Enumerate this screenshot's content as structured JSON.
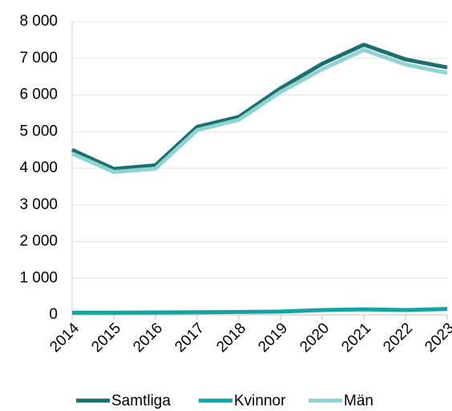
{
  "chart_data": {
    "type": "line",
    "categories": [
      "2014",
      "2015",
      "2016",
      "2017",
      "2018",
      "2019",
      "2020",
      "2021",
      "2022",
      "2023"
    ],
    "series": [
      {
        "name": "Samtliga",
        "color": "#1b6f6f",
        "values": [
          4500,
          3980,
          4080,
          5130,
          5400,
          6180,
          6850,
          7370,
          6970,
          6750
        ]
      },
      {
        "name": "Kvinnor",
        "color": "#14a3a3",
        "values": [
          60,
          60,
          65,
          70,
          80,
          90,
          130,
          150,
          130,
          160
        ]
      },
      {
        "name": "Män",
        "color": "#8fd3d3",
        "values": [
          4400,
          3900,
          3990,
          5040,
          5320,
          6080,
          6700,
          7230,
          6830,
          6600
        ]
      }
    ],
    "ylim": [
      0,
      8000
    ],
    "yticks": [
      0,
      {
        "value": 1000,
        "label": "1 000"
      },
      {
        "value": 2000,
        "label": "2 000"
      },
      {
        "value": 3000,
        "label": "3 000"
      },
      {
        "value": 4000,
        "label": "4 000"
      },
      {
        "value": 5000,
        "label": "5 000"
      },
      {
        "value": 6000,
        "label": "6 000"
      },
      {
        "value": 7000,
        "label": "7 000"
      },
      {
        "value": 8000,
        "label": "8 000"
      }
    ],
    "grid": true,
    "legend": "bottom"
  }
}
